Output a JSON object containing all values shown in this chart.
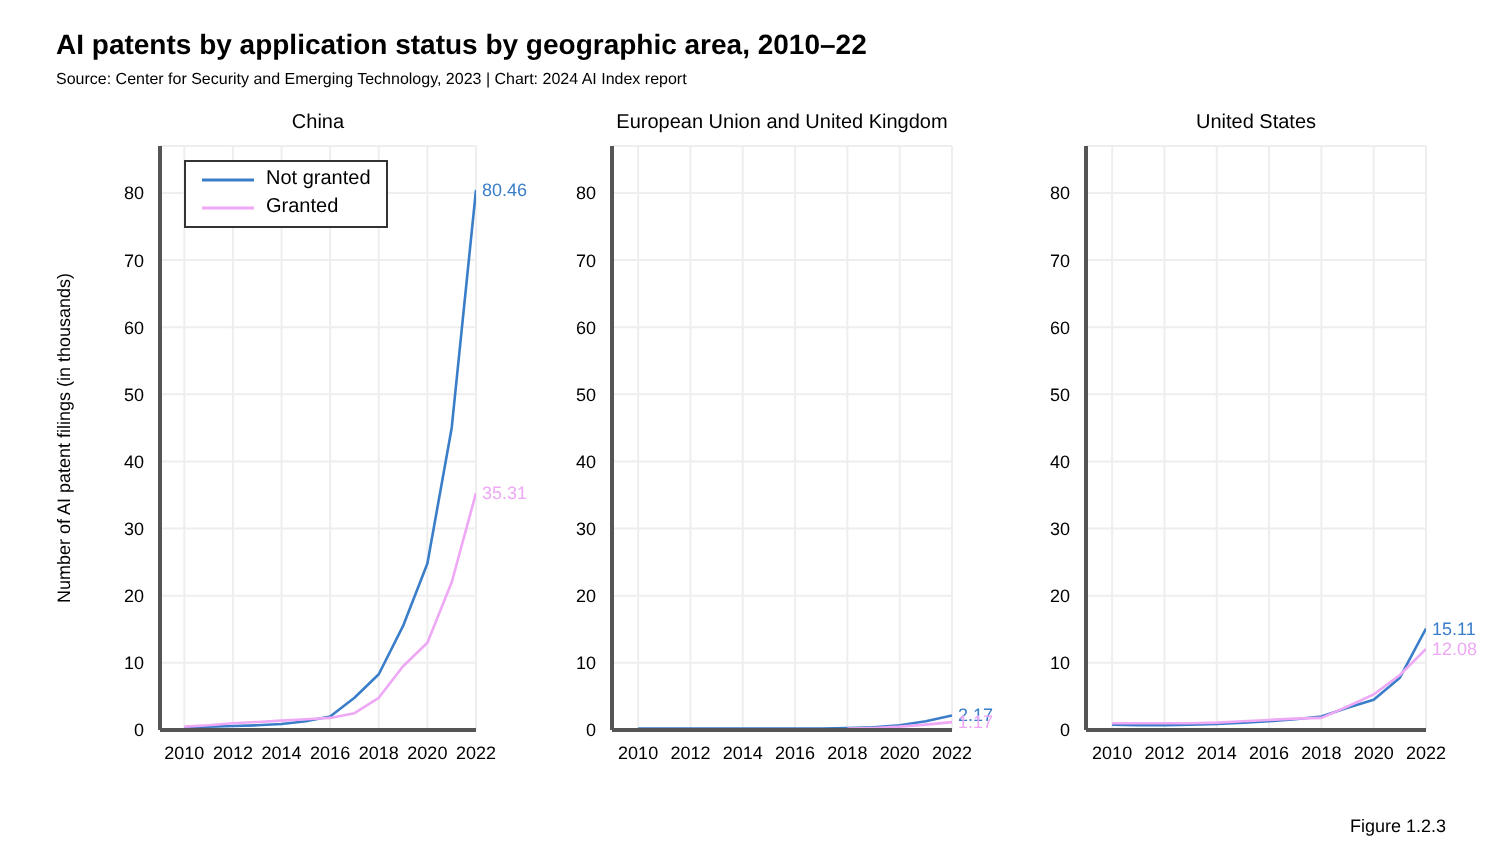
{
  "chart_data": [
    {
      "type": "line",
      "title": "China",
      "ylabel": "Number of AI patent filings (in thousands)",
      "annotations": [
        "AI patents by application status by geographic area, 2010–22",
        "Source: Center for Security and Emerging Technology, 2023 | Chart: 2024 AI Index report"
      ],
      "x": [
        2010,
        2011,
        2012,
        2013,
        2014,
        2015,
        2016,
        2017,
        2018,
        2019,
        2020,
        2021,
        2022
      ],
      "xlim": [
        2009,
        2022
      ],
      "xticks": [
        2010,
        2012,
        2014,
        2016,
        2018,
        2020,
        2022
      ],
      "ylim": [
        0,
        87
      ],
      "yticks": [
        0,
        10,
        20,
        30,
        40,
        50,
        60,
        70,
        80
      ],
      "grid": true,
      "legend": "top left",
      "marker": "none",
      "series": [
        {
          "name": "Not granted",
          "color": "#3a7dc9",
          "values": [
            0.3,
            0.5,
            0.6,
            0.7,
            0.9,
            1.3,
            2.0,
            4.8,
            8.3,
            15.5,
            24.8,
            45,
            80.46
          ],
          "value_labels": [
            null,
            null,
            null,
            null,
            null,
            null,
            null,
            null,
            null,
            null,
            null,
            null,
            "80.46"
          ]
        },
        {
          "name": "Granted",
          "color": "#eea8f5",
          "values": [
            0.5,
            0.7,
            1.0,
            1.2,
            1.4,
            1.6,
            1.8,
            2.5,
            4.8,
            9.5,
            13,
            22,
            35.31
          ],
          "value_labels": [
            null,
            null,
            null,
            null,
            null,
            null,
            null,
            null,
            null,
            null,
            null,
            null,
            "35.31"
          ]
        }
      ]
    },
    {
      "type": "line",
      "title": "European Union and United Kingdom",
      "x": [
        2010,
        2011,
        2012,
        2013,
        2014,
        2015,
        2016,
        2017,
        2018,
        2019,
        2020,
        2021,
        2022
      ],
      "xlim": [
        2009,
        2022
      ],
      "xticks": [
        2010,
        2012,
        2014,
        2016,
        2018,
        2020,
        2022
      ],
      "ylim": [
        0,
        87
      ],
      "yticks": [
        0,
        10,
        20,
        30,
        40,
        50,
        60,
        70,
        80
      ],
      "grid": true,
      "marker": "none",
      "series": [
        {
          "color": "#3a7dc9",
          "values": [
            0.2,
            0.2,
            0.2,
            0.2,
            0.2,
            0.2,
            0.2,
            0.2,
            0.3,
            0.4,
            0.7,
            1.3,
            2.17
          ],
          "value_labels": [
            null,
            null,
            null,
            null,
            null,
            null,
            null,
            null,
            null,
            null,
            null,
            null,
            "2.17"
          ]
        },
        {
          "color": "#eea8f5",
          "values": [
            null,
            null,
            null,
            null,
            null,
            null,
            null,
            null,
            0.2,
            0.3,
            0.5,
            0.8,
            1.17
          ],
          "value_labels": [
            null,
            null,
            null,
            null,
            null,
            null,
            null,
            null,
            null,
            null,
            null,
            null,
            "1.17"
          ]
        }
      ]
    },
    {
      "type": "line",
      "title": "United States",
      "annotations": [
        "Figure 1.2.3"
      ],
      "x": [
        2010,
        2011,
        2012,
        2013,
        2014,
        2015,
        2016,
        2017,
        2018,
        2019,
        2020,
        2021,
        2022
      ],
      "xlim": [
        2009,
        2022
      ],
      "xticks": [
        2010,
        2012,
        2014,
        2016,
        2018,
        2020,
        2022
      ],
      "ylim": [
        0,
        87
      ],
      "yticks": [
        0,
        10,
        20,
        30,
        40,
        50,
        60,
        70,
        80
      ],
      "grid": true,
      "marker": "none",
      "series": [
        {
          "color": "#3a7dc9",
          "values": [
            0.8,
            0.7,
            0.7,
            0.8,
            0.9,
            1.1,
            1.3,
            1.6,
            2.0,
            3.3,
            4.5,
            7.8,
            15.11
          ],
          "value_labels": [
            null,
            null,
            null,
            null,
            null,
            null,
            null,
            null,
            null,
            null,
            null,
            null,
            "15.11"
          ]
        },
        {
          "color": "#eea8f5",
          "values": [
            1.0,
            1.0,
            1.0,
            1.0,
            1.1,
            1.3,
            1.5,
            1.7,
            1.8,
            3.5,
            5.3,
            8.2,
            12.08
          ],
          "value_labels": [
            null,
            null,
            null,
            null,
            null,
            null,
            null,
            null,
            null,
            null,
            null,
            null,
            "12.08"
          ]
        }
      ]
    }
  ]
}
